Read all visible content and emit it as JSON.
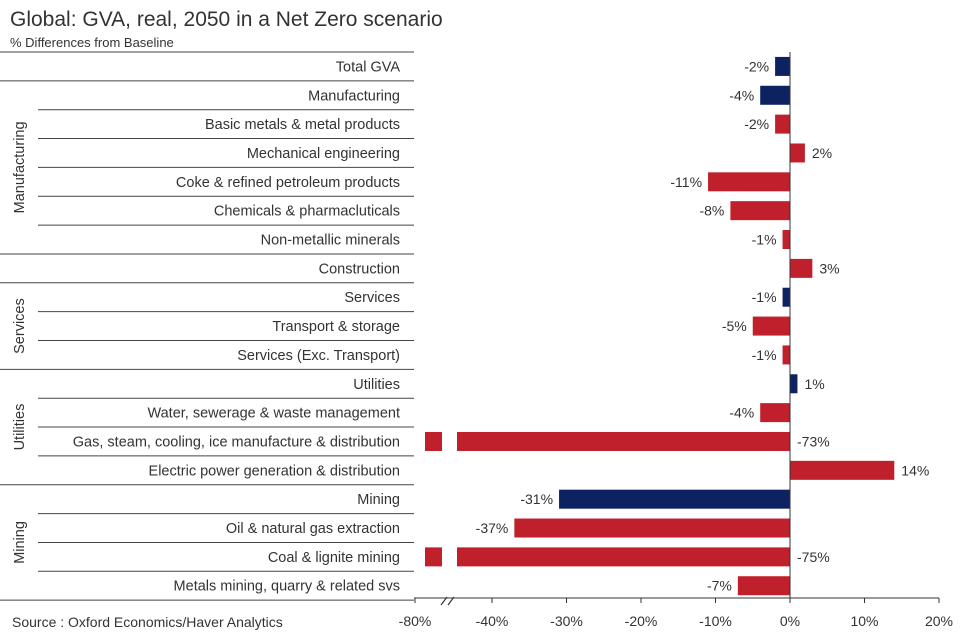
{
  "title": "Global: GVA, real, 2050 in a Net Zero scenario",
  "subtitle": "% Differences from Baseline",
  "source": "Source : Oxford Economics/Haver Analytics",
  "colors": {
    "total": "#0d2260",
    "detail": "#c0202b",
    "axis": "#333333"
  },
  "chart_data": {
    "type": "bar",
    "orientation": "horizontal",
    "title": "Global: GVA, real, 2050 in a Net Zero scenario",
    "subtitle": "% Differences from Baseline",
    "xlim": [
      -80,
      20
    ],
    "axis_break_between": [
      -80,
      -40
    ],
    "x_ticks": [
      "-80%",
      "-40%",
      "-30%",
      "-20%",
      "-10%",
      "0%",
      "10%",
      "20%"
    ],
    "rows": [
      {
        "label": "Total GVA",
        "value": -2,
        "value_label": "-2%",
        "kind": "total"
      },
      {
        "label": "Manufacturing",
        "value": -4,
        "value_label": "-4%",
        "kind": "total"
      },
      {
        "label": "Basic metals & metal products",
        "value": -2,
        "value_label": "-2%",
        "kind": "detail"
      },
      {
        "label": "Mechanical engineering",
        "value": 2,
        "value_label": "2%",
        "kind": "detail"
      },
      {
        "label": "Coke & refined petroleum products",
        "value": -11,
        "value_label": "-11%",
        "kind": "detail"
      },
      {
        "label": "Chemicals & pharmacluticals",
        "value": -8,
        "value_label": "-8%",
        "kind": "detail"
      },
      {
        "label": "Non-metallic minerals",
        "value": -1,
        "value_label": "-1%",
        "kind": "detail"
      },
      {
        "label": "Construction",
        "value": 3,
        "value_label": "3%",
        "kind": "detail"
      },
      {
        "label": "Services",
        "value": -1,
        "value_label": "-1%",
        "kind": "total"
      },
      {
        "label": "Transport & storage",
        "value": -5,
        "value_label": "-5%",
        "kind": "detail"
      },
      {
        "label": "Services (Exc. Transport)",
        "value": -1,
        "value_label": "-1%",
        "kind": "detail"
      },
      {
        "label": "Utilities",
        "value": 1,
        "value_label": "1%",
        "kind": "total"
      },
      {
        "label": "Water, sewerage & waste management",
        "value": -4,
        "value_label": "-4%",
        "kind": "detail"
      },
      {
        "label": "Gas, steam, cooling, ice manufacture & distribution",
        "value": -73,
        "value_label": "-73%",
        "kind": "detail"
      },
      {
        "label": "Electric power generation & distribution",
        "value": 14,
        "value_label": "14%",
        "kind": "detail"
      },
      {
        "label": "Mining",
        "value": -31,
        "value_label": "-31%",
        "kind": "total"
      },
      {
        "label": "Oil & natural gas extraction",
        "value": -37,
        "value_label": "-37%",
        "kind": "detail"
      },
      {
        "label": "Coal & lignite mining",
        "value": -75,
        "value_label": "-75%",
        "kind": "detail"
      },
      {
        "label": "Metals mining, quarry & related svs",
        "value": -7,
        "value_label": "-7%",
        "kind": "detail"
      }
    ],
    "groups": [
      {
        "name": "Manufacturing",
        "first_row": 1,
        "last_row": 6
      },
      {
        "name": "Services",
        "first_row": 8,
        "last_row": 10
      },
      {
        "name": "Utilities",
        "first_row": 11,
        "last_row": 14
      },
      {
        "name": "Mining",
        "first_row": 15,
        "last_row": 18
      }
    ]
  }
}
